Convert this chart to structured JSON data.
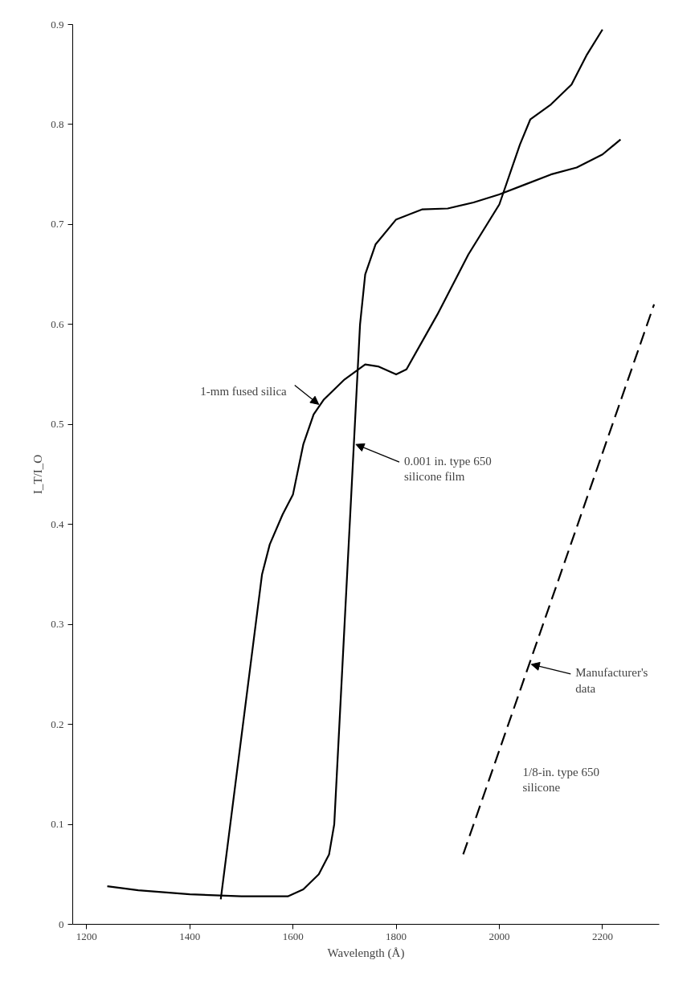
{
  "chart_data": {
    "type": "line",
    "xlabel": "Wavelength (Å)",
    "ylabel": "I_T/I_O",
    "xlim": [
      1173,
      2310
    ],
    "ylim": [
      0,
      0.9
    ],
    "xticks": [
      1200,
      1400,
      1600,
      1800,
      2000,
      2200
    ],
    "yticks": [
      {
        "value": 0,
        "label": "0"
      },
      0.1,
      0.2,
      0.3,
      0.4,
      0.5,
      0.6,
      0.7,
      0.8,
      0.9
    ],
    "grid": false,
    "marker": "none",
    "series": [
      {
        "color": "#000000",
        "line_style": "solid",
        "x": [
          1460,
          1540,
          1555,
          1580,
          1600,
          1620,
          1640,
          1660,
          1700,
          1740,
          1765,
          1800,
          1820,
          1880,
          1940,
          2000,
          2040,
          2060,
          2100,
          2140,
          2170,
          2200
        ],
        "values": [
          0.025,
          0.35,
          0.38,
          0.41,
          0.43,
          0.48,
          0.51,
          0.525,
          0.545,
          0.56,
          0.558,
          0.55,
          0.555,
          0.61,
          0.67,
          0.72,
          0.78,
          0.805,
          0.82,
          0.84,
          0.87,
          0.895
        ]
      },
      {
        "color": "#000000",
        "line_style": "solid",
        "x": [
          1240,
          1300,
          1400,
          1500,
          1590,
          1620,
          1650,
          1670,
          1680,
          1700,
          1720,
          1730,
          1740,
          1760,
          1800,
          1850,
          1900,
          1950,
          2000,
          2050,
          2100,
          2150,
          2200,
          2235
        ],
        "values": [
          0.038,
          0.034,
          0.03,
          0.028,
          0.028,
          0.035,
          0.05,
          0.07,
          0.1,
          0.3,
          0.5,
          0.6,
          0.65,
          0.68,
          0.705,
          0.715,
          0.716,
          0.722,
          0.73,
          0.74,
          0.75,
          0.757,
          0.77,
          0.785
        ]
      },
      {
        "color": "#000000",
        "line_style": "dashed",
        "x": [
          1930,
          2300
        ],
        "values": [
          0.07,
          0.62
        ]
      }
    ],
    "annotations": [
      {
        "text": "1-mm fused silica",
        "x": 1650,
        "y": 0.52
      },
      {
        "text": "0.001 in. type 650\nsilicone film",
        "x": 1722,
        "y": 0.48
      },
      {
        "text": "Manufacturer's\ndata",
        "x": 2062,
        "y": 0.26
      },
      "1/8-in. type 650\nsilicone"
    ]
  }
}
